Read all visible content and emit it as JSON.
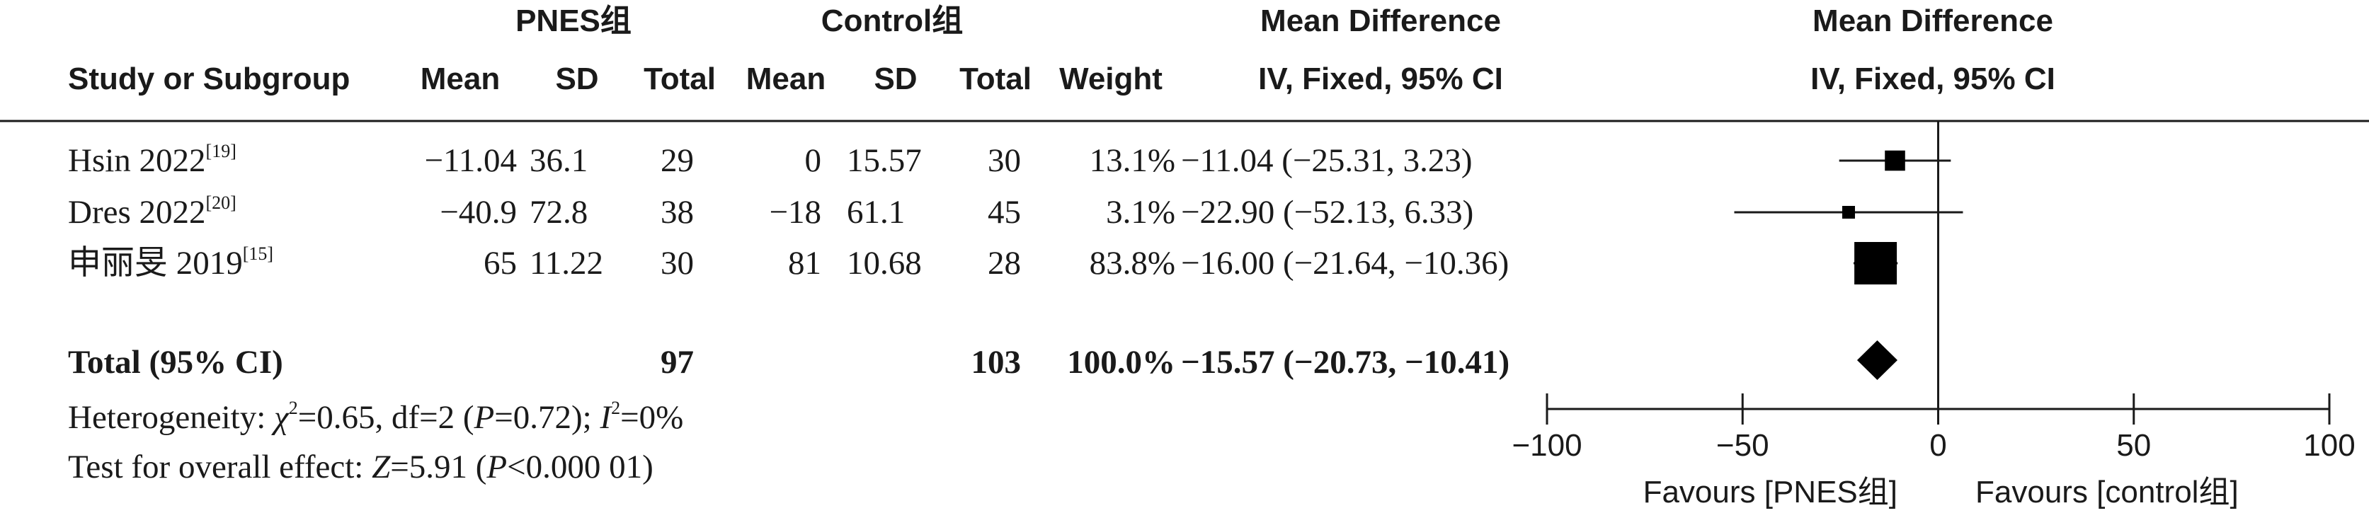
{
  "header": {
    "group1": "PNES组",
    "group2": "Control组",
    "md_title": "Mean Difference",
    "md_title_plot": "Mean Difference",
    "study": "Study or Subgroup",
    "mean1": "Mean",
    "sd1": "SD",
    "total1": "Total",
    "mean2": "Mean",
    "sd2": "SD",
    "total2": "Total",
    "weight": "Weight",
    "method": "IV, Fixed, 95% CI",
    "method_plot": "IV, Fixed, 95% CI"
  },
  "rows": [
    {
      "name": "Hsin 2022",
      "ref": "[19]",
      "mean1": "−11.04",
      "sd1": "36.1",
      "total1": "29",
      "mean2": "0",
      "sd2": "15.57",
      "total2": "30",
      "weight": "13.1%",
      "ci": "−11.04 (−25.31, 3.23)"
    },
    {
      "name": "Dres 2022",
      "ref": "[20]",
      "mean1": "−40.9",
      "sd1": "72.8",
      "total1": "38",
      "mean2": "−18",
      "sd2": "61.1",
      "total2": "45",
      "weight": "3.1%",
      "ci": "−22.90 (−52.13, 6.33)"
    },
    {
      "name": "申丽旻 2019",
      "ref": "[15]",
      "mean1": "65",
      "sd1": "11.22",
      "total1": "30",
      "mean2": "81",
      "sd2": "10.68",
      "total2": "28",
      "weight": "83.8%",
      "ci": "−16.00 (−21.64, −10.36)"
    }
  ],
  "total_row": {
    "label": "Total (95% CI)",
    "total1": "97",
    "total2": "103",
    "weight": "100.0%",
    "ci": "−15.57 (−20.73, −10.41)"
  },
  "footer": {
    "het_prefix": "Heterogeneity: ",
    "chi": "χ",
    "chi_sup": "2",
    "het_mid": "=0.65, df=2 (",
    "p": "P",
    "het_p": "=0.72); ",
    "i": "I",
    "i_sup": "2",
    "het_end": "=0%",
    "test_prefix": "Test for overall effect: ",
    "z": "Z",
    "test_mid": "=5.91 (",
    "p2": "P",
    "test_end": "<0.000 01)"
  },
  "axis": {
    "ticks": [
      "−100",
      "−50",
      "0",
      "50",
      "100"
    ],
    "favours_left": "Favours [PNES组]",
    "favours_right": "Favours [control组]"
  },
  "chart_data": {
    "type": "forest",
    "xlim": [
      -100,
      100
    ],
    "xticks": [
      -100,
      -50,
      0,
      50,
      100
    ],
    "studies": [
      {
        "name": "Hsin 2022",
        "md": -11.04,
        "lower": -25.31,
        "upper": 3.23,
        "weight": 13.1
      },
      {
        "name": "Dres 2022",
        "md": -22.9,
        "lower": -52.13,
        "upper": 6.33,
        "weight": 3.1
      },
      {
        "name": "申丽旻 2019",
        "md": -16.0,
        "lower": -21.64,
        "upper": -10.36,
        "weight": 83.8
      }
    ],
    "pooled": {
      "md": -15.57,
      "lower": -20.73,
      "upper": -10.41
    }
  }
}
